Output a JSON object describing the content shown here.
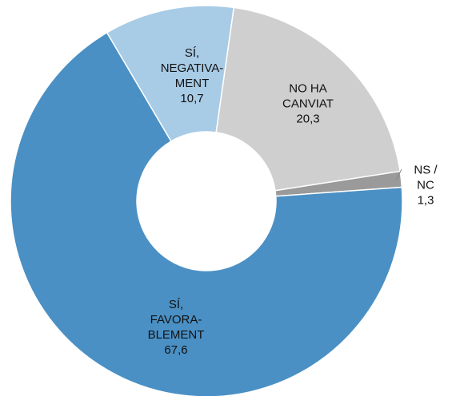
{
  "chart_data": {
    "type": "donut",
    "categories": [
      "SÍ,\nNEGATIVA-\nMENT",
      "NO HA\nCANVIAT",
      "NS / NC",
      "SÍ,\nFAVORA-\nBLEMENT"
    ],
    "values": [
      10.7,
      20.3,
      1.3,
      67.6
    ],
    "value_labels": [
      "10,7",
      "20,3",
      "1,3",
      "67,6"
    ],
    "colors": [
      "#a8cbe6",
      "#cfcfcf",
      "#9a9a9a",
      "#4a90c4"
    ]
  }
}
